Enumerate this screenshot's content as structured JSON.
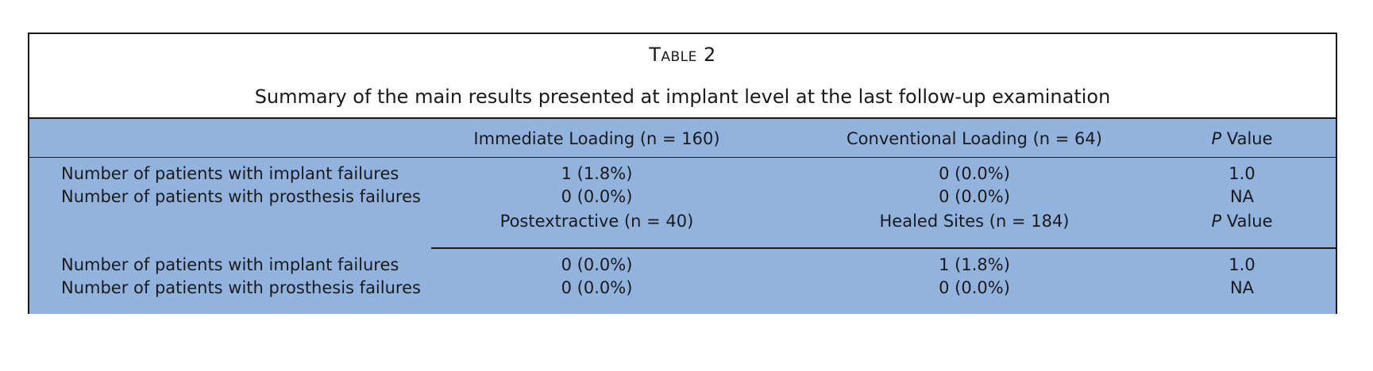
{
  "table": {
    "label": "Table 2",
    "title": "Summary of the main results presented at implant level at the last follow-up examination",
    "header": {
      "col1": "Immediate Loading (n = 160)",
      "col2": "Conventional Loading (n = 64)",
      "col3_italic": "P",
      "col3_rest": " Value"
    },
    "section1": {
      "rows": [
        {
          "label": "Number of patients with implant failures",
          "col1": "1 (1.8%)",
          "col2": "0 (0.0%)",
          "col3": "1.0"
        },
        {
          "label": "Number of patients with prosthesis failures",
          "col1": "0 (0.0%)",
          "col2": "0 (0.0%)",
          "col3": "NA"
        }
      ]
    },
    "subheader": {
      "col1": "Postextractive (n = 40)",
      "col2": "Healed Sites (n = 184)",
      "col3_italic": "P",
      "col3_rest": " Value"
    },
    "section2": {
      "rows": [
        {
          "label": "Number of patients with implant failures",
          "col1": "0 (0.0%)",
          "col2": "1 (1.8%)",
          "col3": "1.0"
        },
        {
          "label": "Number of patients with prosthesis failures",
          "col1": "0 (0.0%)",
          "col2": "0 (0.0%)",
          "col3": "NA"
        }
      ]
    },
    "colors": {
      "body_background": "#93b3df",
      "rule": "#1a1a1a"
    }
  }
}
